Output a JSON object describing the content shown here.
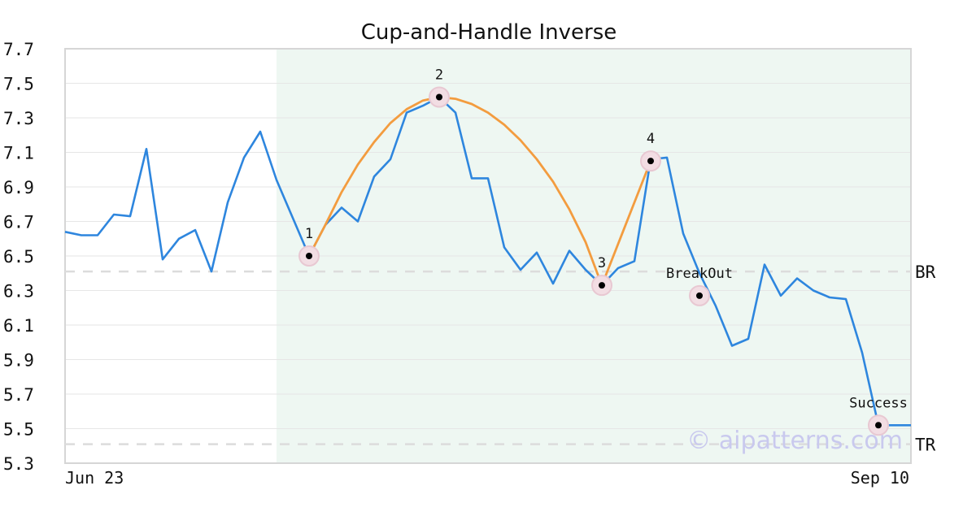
{
  "chart_data": {
    "type": "line",
    "title": "Cup-and-Handle Inverse",
    "xlabel": "",
    "ylabel": "",
    "ylim": [
      5.3,
      7.7
    ],
    "yticks": [
      "7.7",
      "7.5",
      "7.3",
      "7.1",
      "6.9",
      "6.7",
      "6.5",
      "6.3",
      "6.1",
      "5.9",
      "5.7",
      "5.5",
      "5.3"
    ],
    "xtick_labels": [
      "Jun 23",
      "Sep 10"
    ],
    "grid": true,
    "series": [
      {
        "values": [
          6.64,
          6.62,
          6.62,
          6.74,
          6.73,
          7.12,
          6.48,
          6.6,
          6.65,
          6.41,
          6.81,
          7.07,
          7.22,
          6.94,
          6.72,
          6.5,
          6.68,
          6.78,
          6.7,
          6.96,
          7.06,
          7.33,
          7.37,
          7.42,
          7.33,
          6.95,
          6.95,
          6.55,
          6.42,
          6.52,
          6.34,
          6.53,
          6.42,
          6.33,
          6.43,
          6.47,
          7.06,
          7.07,
          6.63,
          6.4,
          6.21,
          5.98,
          6.02,
          6.45,
          6.27,
          6.37,
          6.3,
          6.26,
          6.25,
          5.94,
          5.52,
          5.52,
          5.52
        ],
        "color": "#2e86de"
      },
      {
        "x": [
          15,
          16,
          17,
          18,
          19,
          20,
          21,
          22,
          23,
          24,
          25,
          26,
          27,
          28,
          29,
          30,
          31,
          32,
          33,
          34,
          35,
          36
        ],
        "values": [
          6.5,
          6.68,
          6.87,
          7.03,
          7.16,
          7.27,
          7.35,
          7.4,
          7.42,
          7.41,
          7.38,
          7.33,
          7.26,
          7.17,
          7.06,
          6.93,
          6.77,
          6.58,
          6.33,
          6.57,
          6.81,
          7.05
        ],
        "color": "#f39c3f"
      }
    ],
    "shaded_region": {
      "x_start": 13,
      "x_end": 52,
      "color": "#eef7f2"
    },
    "reference_lines": [
      {
        "label": "BR",
        "value": 6.41
      },
      {
        "label": "TR",
        "value": 5.41
      }
    ],
    "annotations": [
      {
        "label": "1",
        "x": 15,
        "y": 6.5
      },
      {
        "label": "2",
        "x": 23,
        "y": 7.42
      },
      {
        "label": "3",
        "x": 33,
        "y": 6.33
      },
      {
        "label": "4",
        "x": 36,
        "y": 7.05
      },
      {
        "label": "BreakOut",
        "x": 39,
        "y": 6.27
      },
      {
        "label": "Success",
        "x": 50,
        "y": 5.52
      }
    ],
    "watermark": "© aipatterns.com"
  }
}
